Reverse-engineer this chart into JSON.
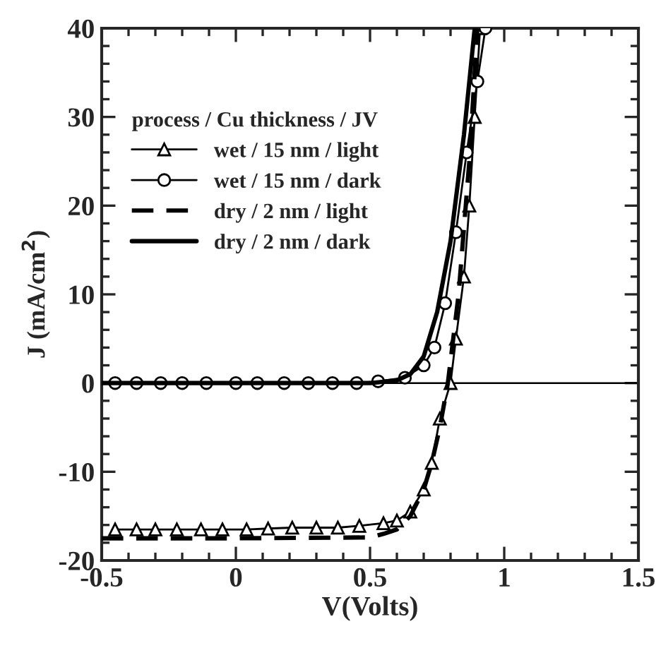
{
  "chart_data": {
    "type": "line",
    "xlabel": "V(Volts)",
    "ylabel": "J (mA/cm$^{2}$)",
    "legend_title": "process / Cu thickness / JV",
    "legend": "top left",
    "grid": false,
    "xlim": [
      -0.5,
      1.5
    ],
    "xticks": [
      -0.5,
      0,
      0.5,
      1,
      1.5
    ],
    "ylim": [
      -20,
      40
    ],
    "yticks": [
      -20,
      -10,
      0,
      10,
      20,
      30,
      40
    ],
    "ref_lines": [
      {
        "axis": "y",
        "value": 0,
        "color": "#000000",
        "line_style": "solid"
      }
    ],
    "series": [
      {
        "name": "wet / 15 nm / light",
        "color": "#000000",
        "marker": "triangle",
        "line_style": "solid",
        "x": [
          -0.45,
          -0.37,
          -0.3,
          -0.22,
          -0.13,
          -0.05,
          0.04,
          0.12,
          0.21,
          0.3,
          0.38,
          0.46,
          0.55,
          0.6,
          0.65,
          0.7,
          0.73,
          0.76,
          0.8,
          0.82,
          0.85,
          0.87,
          0.89,
          0.91
        ],
        "values": [
          -16.5,
          -16.5,
          -16.5,
          -16.5,
          -16.5,
          -16.5,
          -16.5,
          -16.4,
          -16.3,
          -16.3,
          -16.3,
          -16.1,
          -15.8,
          -15.5,
          -14.5,
          -12,
          -9,
          -4,
          0,
          5,
          12,
          20,
          30,
          40
        ]
      },
      {
        "name": "wet / 15 nm / dark",
        "color": "#000000",
        "marker": "circle",
        "line_style": "solid",
        "x": [
          -0.45,
          -0.37,
          -0.28,
          -0.2,
          -0.11,
          0,
          0.08,
          0.18,
          0.27,
          0.36,
          0.45,
          0.53,
          0.63,
          0.7,
          0.74,
          0.78,
          0.82,
          0.86,
          0.9,
          0.93
        ],
        "values": [
          0,
          0,
          0,
          0,
          0,
          0,
          0,
          0,
          0,
          0,
          0,
          0.2,
          0.6,
          2,
          4,
          9,
          17,
          26,
          34,
          40
        ]
      },
      {
        "name": "dry / 2 nm / light",
        "color": "#000000",
        "marker": "none",
        "line_style": "dashed",
        "x": [
          -0.5,
          0,
          0.5,
          0.55,
          0.6,
          0.65,
          0.7,
          0.73,
          0.76,
          0.79,
          0.83,
          0.87,
          0.9
        ],
        "values": [
          -17.5,
          -17.5,
          -17.4,
          -17,
          -16.5,
          -15,
          -12,
          -9,
          -5,
          0,
          10,
          25,
          40
        ]
      },
      {
        "name": "dry / 2 nm / dark",
        "color": "#000000",
        "marker": "none",
        "line_style": "solid",
        "x": [
          -0.5,
          0,
          0.5,
          0.6,
          0.65,
          0.7,
          0.75,
          0.8,
          0.85,
          0.89
        ],
        "values": [
          0,
          0,
          0,
          0.3,
          1,
          3,
          8,
          16,
          28,
          40
        ]
      }
    ]
  }
}
